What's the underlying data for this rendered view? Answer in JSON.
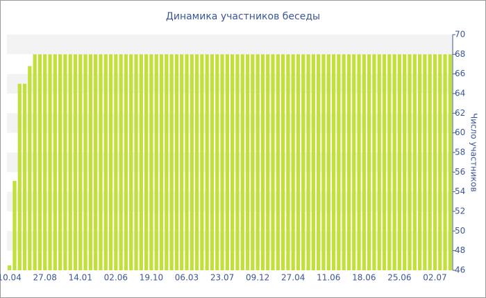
{
  "chart_data": {
    "type": "bar",
    "title": "Динамика участников беседы",
    "y_label": "Число участников",
    "categories": [
      "10.04",
      null,
      null,
      null,
      null,
      null,
      null,
      "27.08",
      null,
      null,
      null,
      null,
      null,
      null,
      "14.01",
      null,
      null,
      null,
      null,
      null,
      null,
      "02.06",
      null,
      null,
      null,
      null,
      null,
      null,
      "19.10",
      null,
      null,
      null,
      null,
      null,
      null,
      "06.03",
      null,
      null,
      null,
      null,
      null,
      null,
      "23.07",
      null,
      null,
      null,
      null,
      null,
      null,
      "09.12",
      null,
      null,
      null,
      null,
      null,
      null,
      "27.04",
      null,
      null,
      null,
      null,
      null,
      null,
      "11.06",
      null,
      null,
      null,
      null,
      null,
      null,
      "18.06",
      null,
      null,
      null,
      null,
      null,
      null,
      "25.06",
      null,
      null,
      null,
      null,
      null,
      null,
      "02.07",
      null,
      null,
      null
    ],
    "values": [
      46.5,
      55.1,
      65,
      65,
      66.8,
      68,
      68,
      68,
      68,
      68,
      68,
      68,
      68,
      68,
      68,
      68,
      68,
      68,
      68,
      68,
      68,
      68,
      68,
      68,
      68,
      68,
      68,
      68,
      68,
      68,
      68,
      68,
      68,
      68,
      68,
      68,
      68,
      68,
      68,
      68,
      68,
      68,
      68,
      68,
      68,
      68,
      68,
      68,
      68,
      68,
      68,
      68,
      68,
      68,
      68,
      68,
      68,
      68,
      68,
      68,
      68,
      68,
      68,
      68,
      68,
      68,
      68,
      68,
      68,
      68,
      68,
      68,
      68,
      68,
      68,
      68,
      68,
      68,
      68,
      68,
      68,
      68,
      68,
      68,
      68,
      68,
      68,
      68
    ],
    "color": "#c1e03c",
    "ylim": [
      46,
      70
    ],
    "yticks": [
      46,
      48,
      50,
      52,
      54,
      56,
      58,
      60,
      62,
      64,
      66,
      68,
      70
    ],
    "y_axis_side": "right",
    "grid": true
  }
}
